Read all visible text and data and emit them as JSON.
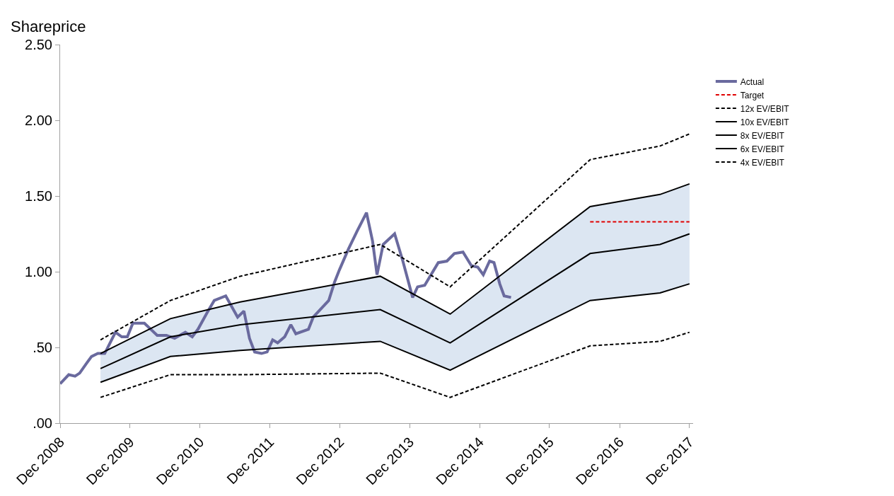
{
  "chart_data": {
    "type": "line",
    "ylabel": "Shareprice",
    "xlim": [
      "2008-12-01",
      "2017-12-20"
    ],
    "ylim": [
      0,
      2.5
    ],
    "xticks": [
      {
        "value": "2008-12-01",
        "label": "Dec 2008"
      },
      {
        "value": "2009-12-01",
        "label": "Dec 2009"
      },
      {
        "value": "2010-12-01",
        "label": "Dec 2010"
      },
      {
        "value": "2011-12-01",
        "label": "Dec 2011"
      },
      {
        "value": "2012-12-01",
        "label": "Dec 2012"
      },
      {
        "value": "2013-12-01",
        "label": "Dec 2013"
      },
      {
        "value": "2014-12-01",
        "label": "Dec 2014"
      },
      {
        "value": "2015-12-01",
        "label": "Dec 2015"
      },
      {
        "value": "2016-12-01",
        "label": "Dec 2016"
      },
      {
        "value": "2017-12-01",
        "label": "Dec 2017"
      }
    ],
    "yticks": [
      {
        "value": 0,
        "label": ".00"
      },
      {
        "value": 0.5,
        "label": ".50"
      },
      {
        "value": 1,
        "label": "1.00"
      },
      {
        "value": 1.5,
        "label": "1.50"
      },
      {
        "value": 2,
        "label": "2.00"
      },
      {
        "value": 2.5,
        "label": "2.50"
      }
    ],
    "legend": "right",
    "marker": "none",
    "series": [
      {
        "name": "Actual",
        "color": "#6a6a9e",
        "line_style": "solid",
        "x": [
          "2008-12-01",
          "2009-01-15",
          "2009-02-17",
          "2009-03-13",
          "2009-04-15",
          "2009-05-14",
          "2009-06-16",
          "2009-07-22",
          "2009-09-16",
          "2009-10-19",
          "2009-11-17",
          "2009-12-16",
          "2010-02-14",
          "2010-04-22",
          "2010-06-09",
          "2010-07-22",
          "2010-09-16",
          "2010-10-22",
          "2010-11-21",
          "2011-01-08",
          "2011-02-14",
          "2011-04-15",
          "2011-06-16",
          "2011-07-19",
          "2011-08-17",
          "2011-09-13",
          "2011-10-19",
          "2011-11-17",
          "2011-12-16",
          "2012-01-11",
          "2012-02-17",
          "2012-03-20",
          "2012-04-15",
          "2012-06-20",
          "2012-07-15",
          "2012-08-28",
          "2012-10-04",
          "2012-11-03",
          "2012-11-28",
          "2013-01-15",
          "2013-03-02",
          "2013-04-19",
          "2013-05-21",
          "2013-06-13",
          "2013-07-15",
          "2013-09-13",
          "2013-10-26",
          "2013-12-16",
          "2014-01-11",
          "2014-02-17",
          "2014-04-29",
          "2014-06-13",
          "2014-07-22",
          "2014-09-05",
          "2014-10-19",
          "2014-11-21",
          "2014-12-20",
          "2015-01-22",
          "2015-02-14",
          "2015-03-16",
          "2015-04-08",
          "2015-05-14"
        ],
        "values": [
          0.26,
          0.32,
          0.31,
          0.33,
          0.39,
          0.44,
          0.46,
          0.46,
          0.6,
          0.57,
          0.57,
          0.66,
          0.66,
          0.58,
          0.58,
          0.56,
          0.6,
          0.57,
          0.62,
          0.73,
          0.81,
          0.84,
          0.7,
          0.74,
          0.56,
          0.47,
          0.46,
          0.47,
          0.55,
          0.53,
          0.57,
          0.65,
          0.59,
          0.62,
          0.7,
          0.76,
          0.81,
          0.93,
          1.01,
          1.15,
          1.27,
          1.39,
          1.2,
          0.98,
          1.18,
          1.25,
          1.07,
          0.83,
          0.9,
          0.91,
          1.06,
          1.07,
          1.12,
          1.13,
          1.04,
          1.03,
          0.98,
          1.07,
          1.06,
          0.92,
          0.84,
          0.83
        ]
      },
      {
        "name": "Target",
        "color": "#e00000",
        "line_style": "dashed",
        "x": [
          "2016-06-30",
          "2017-12-01"
        ],
        "values": [
          1.33,
          1.33
        ]
      },
      {
        "name": "12x EV/EBIT",
        "color": "#000000",
        "line_style": "dashed",
        "x": [
          "2009-06-30",
          "2010-06-30",
          "2011-06-30",
          "2013-06-30",
          "2014-06-30",
          "2016-06-30",
          "2017-06-30",
          "2017-12-01"
        ],
        "values": [
          0.55,
          0.81,
          0.97,
          1.18,
          0.9,
          1.74,
          1.83,
          1.91
        ]
      },
      {
        "name": "10x EV/EBIT",
        "color": "#000000",
        "line_style": "solid",
        "x": [
          "2009-06-30",
          "2010-06-30",
          "2011-06-30",
          "2013-06-30",
          "2014-06-30",
          "2016-06-30",
          "2017-06-30",
          "2017-12-01"
        ],
        "values": [
          0.46,
          0.69,
          0.8,
          0.97,
          0.72,
          1.43,
          1.51,
          1.58
        ]
      },
      {
        "name": "8x EV/EBIT",
        "color": "#000000",
        "line_style": "solid",
        "x": [
          "2009-06-30",
          "2010-06-30",
          "2011-06-30",
          "2013-06-30",
          "2014-06-30",
          "2016-06-30",
          "2017-06-30",
          "2017-12-01"
        ],
        "values": [
          0.36,
          0.57,
          0.65,
          0.75,
          0.53,
          1.12,
          1.18,
          1.25
        ],
        "lower": [
          0.27,
          0.44,
          0.48,
          0.54,
          0.35,
          0.81,
          0.86,
          0.92
        ],
        "upper": [
          0.46,
          0.69,
          0.8,
          0.97,
          0.72,
          1.43,
          1.51,
          1.58
        ]
      },
      {
        "name": "6x EV/EBIT",
        "color": "#000000",
        "line_style": "solid",
        "x": [
          "2009-06-30",
          "2010-06-30",
          "2011-06-30",
          "2013-06-30",
          "2014-06-30",
          "2016-06-30",
          "2017-06-30",
          "2017-12-01"
        ],
        "values": [
          0.27,
          0.44,
          0.48,
          0.54,
          0.35,
          0.81,
          0.86,
          0.92
        ]
      },
      {
        "name": "4x EV/EBIT",
        "color": "#000000",
        "line_style": "dashed",
        "x": [
          "2009-06-30",
          "2010-06-30",
          "2011-06-30",
          "2013-06-30",
          "2014-06-30",
          "2016-06-30",
          "2017-06-30",
          "2017-12-01"
        ],
        "values": [
          0.17,
          0.32,
          0.32,
          0.33,
          0.17,
          0.51,
          0.54,
          0.6
        ]
      }
    ]
  }
}
